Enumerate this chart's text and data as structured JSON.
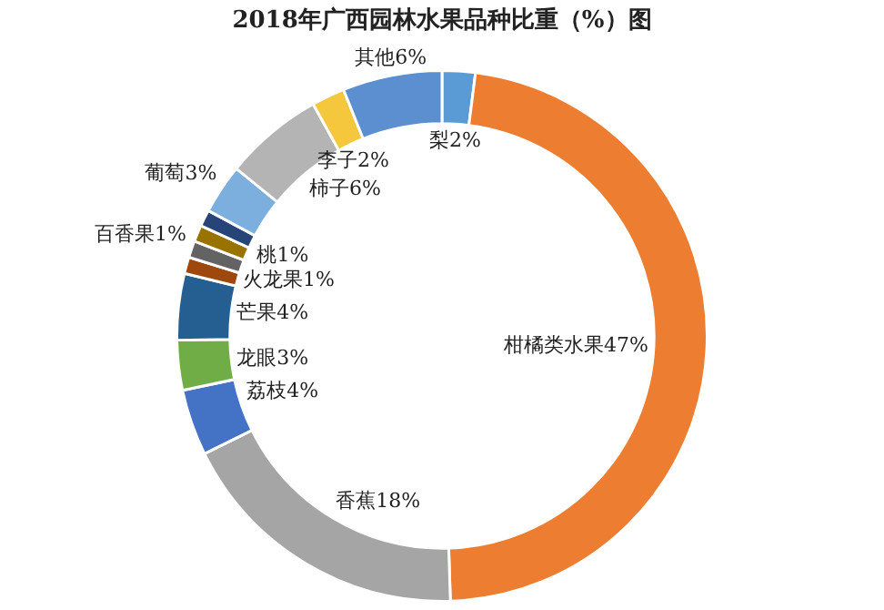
{
  "chart_data": {
    "type": "donut",
    "title": "2018年广西园林水果品种比重（%）图",
    "categories": [
      "梨",
      "柑橘类水果",
      "香蕉",
      "荔枝",
      "龙眼",
      "芒果",
      "火龙果",
      "百香果",
      null,
      "桃",
      "葡萄",
      "柿子",
      "李子",
      "其他"
    ],
    "values": [
      2,
      47,
      18,
      4,
      3,
      4,
      1,
      1,
      1,
      1,
      3,
      6,
      2,
      6
    ],
    "value_labels": [
      "2%",
      "47%",
      "18%",
      "4%",
      "3%",
      "4%",
      "1%",
      "1%",
      null,
      "1%",
      "3%",
      "6%",
      "2%",
      "6%"
    ],
    "colors": [
      "#5b9bd5",
      "#ed7d31",
      "#a5a5a5",
      "#4472c4",
      "#70ad47",
      "#255e91",
      "#9e480e",
      "#636363",
      "#997300",
      "#264478",
      "#7cafdd",
      "#b4b4b4",
      "#f5c73c",
      "#5b8fd0"
    ],
    "legend": false
  }
}
